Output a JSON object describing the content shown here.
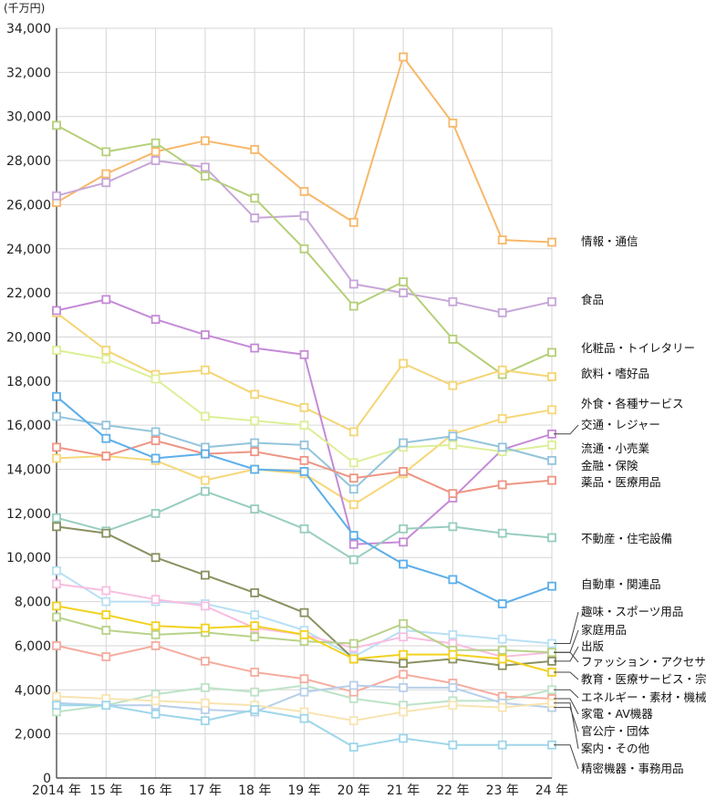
{
  "chart_data": {
    "type": "line",
    "unit": "(千万円)",
    "x": [
      "2014 年",
      "15 年",
      "16 年",
      "17 年",
      "18 年",
      "19 年",
      "20 年",
      "21 年",
      "22 年",
      "23 年",
      "24 年"
    ],
    "ylim": [
      0,
      34000
    ],
    "yticks": [
      "0",
      "2,000",
      "4,000",
      "6,000",
      "8,000",
      "10,000",
      "12,000",
      "14,000",
      "16,000",
      "18,000",
      "20,000",
      "22,000",
      "24,000",
      "26,000",
      "28,000",
      "30,000",
      "32,000",
      "34,000"
    ],
    "grid": true,
    "series": [
      {
        "name": "情報・通信",
        "color": "#f7b86a",
        "values": [
          26100,
          27400,
          28400,
          28900,
          28500,
          26600,
          25200,
          32700,
          29700,
          24400,
          24300
        ]
      },
      {
        "name": "食品",
        "color": "#c7a6d8",
        "values": [
          26400,
          27000,
          28000,
          27700,
          25400,
          25500,
          22400,
          22000,
          21600,
          21100,
          21600
        ]
      },
      {
        "name": "化粧品・トイレタリー",
        "color": "#b5cf78",
        "values": [
          29600,
          28400,
          28800,
          27300,
          26300,
          24000,
          21400,
          22500,
          19900,
          18300,
          19300
        ]
      },
      {
        "name": "飲料・嗜好品",
        "color": "#f4d575",
        "values": [
          21100,
          19400,
          18300,
          18500,
          17400,
          16800,
          15700,
          18800,
          17800,
          18500,
          18200
        ]
      },
      {
        "name": "外食・各種サービス",
        "color": "#f6d778",
        "values": [
          14500,
          14600,
          14400,
          13500,
          14000,
          13800,
          12400,
          13800,
          15600,
          16300,
          16700
        ]
      },
      {
        "name": "交通・レジャー",
        "color": "#c58ad7",
        "values": [
          21200,
          21700,
          20800,
          20100,
          19500,
          19200,
          10600,
          10700,
          12700,
          14900,
          15600
        ]
      },
      {
        "name": "流通・小売業",
        "color": "#dcef96",
        "values": [
          19400,
          19000,
          18100,
          16400,
          16200,
          16000,
          14300,
          15000,
          15100,
          14800,
          15100
        ]
      },
      {
        "name": "金融・保険",
        "color": "#93c4dc",
        "values": [
          16400,
          16000,
          15700,
          15000,
          15200,
          15100,
          13100,
          15200,
          15500,
          15000,
          14400
        ]
      },
      {
        "name": "薬品・医療用品",
        "color": "#ee9584",
        "values": [
          15000,
          14600,
          15300,
          14700,
          14800,
          14400,
          13600,
          13900,
          12900,
          13300,
          13500
        ]
      },
      {
        "name": "不動産・住宅設備",
        "color": "#97cdbf",
        "values": [
          11800,
          11200,
          12000,
          13000,
          12200,
          11300,
          9900,
          11300,
          11400,
          11100,
          10900
        ]
      },
      {
        "name": "自動車・関連品",
        "color": "#5caeea",
        "values": [
          17300,
          15400,
          14500,
          14700,
          14000,
          13900,
          11000,
          9700,
          9000,
          7900,
          8700
        ]
      },
      {
        "name": "趣味・スポーツ用品",
        "color": "#b8e0f4",
        "values": [
          9400,
          8000,
          8000,
          7900,
          7400,
          6700,
          5500,
          6700,
          6500,
          6300,
          6100
        ]
      },
      {
        "name": "家庭用品",
        "color": "#f8bde0",
        "values": [
          8800,
          8500,
          8100,
          7800,
          6800,
          6500,
          5900,
          6400,
          6100,
          5500,
          5700
        ]
      },
      {
        "name": "出版",
        "color": "#8a9060",
        "values": [
          11400,
          11100,
          10000,
          9200,
          8400,
          7500,
          5400,
          5200,
          5400,
          5100,
          5300
        ]
      },
      {
        "name": "ファッション・アクセサリー",
        "color": "#b8d289",
        "values": [
          7300,
          6700,
          6500,
          6600,
          6400,
          6200,
          6100,
          7000,
          5800,
          5800,
          5700
        ]
      },
      {
        "name": "教育・医療サービス・宗教",
        "color": "#f2d21e",
        "values": [
          7800,
          7400,
          6900,
          6800,
          6900,
          6500,
          5400,
          5600,
          5600,
          5400,
          4800
        ]
      },
      {
        "name": "エネルギー・素材・機械",
        "color": "#bde3c7",
        "values": [
          3000,
          3300,
          3800,
          4100,
          3900,
          4200,
          3600,
          3300,
          3500,
          3500,
          4000
        ]
      },
      {
        "name": "家電・AV機器",
        "color": "#f5ac9f",
        "values": [
          6000,
          5500,
          6000,
          5300,
          4800,
          4500,
          3900,
          4700,
          4300,
          3700,
          3600
        ]
      },
      {
        "name": "官公庁・団体",
        "color": "#b7cfea",
        "values": [
          3400,
          3300,
          3300,
          3100,
          3000,
          3900,
          4200,
          4100,
          4100,
          3400,
          3200
        ]
      },
      {
        "name": "案内・その他",
        "color": "#f8e4b2",
        "values": [
          3700,
          3600,
          3500,
          3400,
          3300,
          3000,
          2600,
          3000,
          3300,
          3200,
          3400
        ]
      },
      {
        "name": "精密機器・事務用品",
        "color": "#9ed6ea",
        "values": [
          3300,
          3300,
          2900,
          2600,
          3100,
          2700,
          1400,
          1800,
          1500,
          1500,
          1500
        ]
      }
    ]
  }
}
